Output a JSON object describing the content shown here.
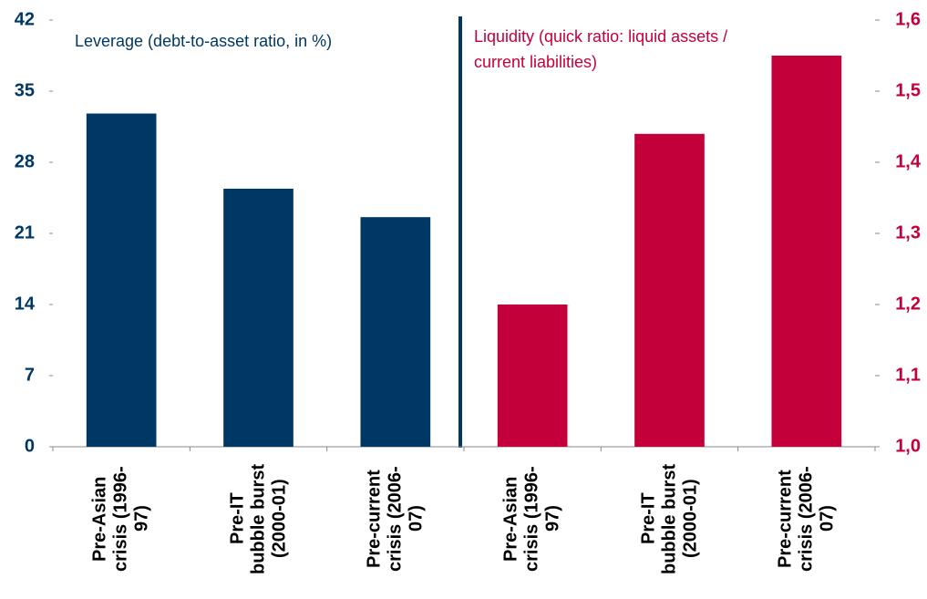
{
  "chart_data": {
    "type": "bar",
    "categories": [
      "Pre-Asian crisis (1996-97)",
      "Pre-IT bubble burst (2000-01)",
      "Pre-current crisis (2006-07)",
      "Pre-Asian crisis (1996-97)",
      "Pre-IT bubble burst (2000-01)",
      "Pre-current crisis (2006-07)"
    ],
    "series": [
      {
        "name": "Leverage (debt-to-asset ratio, in %)",
        "color": "#003865",
        "axis": "y",
        "values": [
          32.8,
          25.4,
          22.6,
          null,
          null,
          null
        ]
      },
      {
        "name": "Liquidity (quick ratio: liquid assets / current liabilities)",
        "color": "#c4003a",
        "axis": "y2",
        "values": [
          null,
          null,
          null,
          1.2,
          1.44,
          1.55
        ]
      }
    ],
    "ylim": [
      0,
      42
    ],
    "yticks": [
      0,
      7,
      14,
      21,
      28,
      35,
      42
    ],
    "y2lim": [
      1.0,
      1.6
    ],
    "y2ticks": [
      {
        "value": 1.0,
        "label": "1,0"
      },
      {
        "value": 1.1,
        "label": "1,1"
      },
      {
        "value": 1.2,
        "label": "1,2"
      },
      {
        "value": 1.3,
        "label": "1,3"
      },
      {
        "value": 1.4,
        "label": "1,4"
      },
      {
        "value": 1.5,
        "label": "1,5"
      },
      {
        "value": 1.6,
        "label": "1,6"
      }
    ],
    "grid": false
  }
}
